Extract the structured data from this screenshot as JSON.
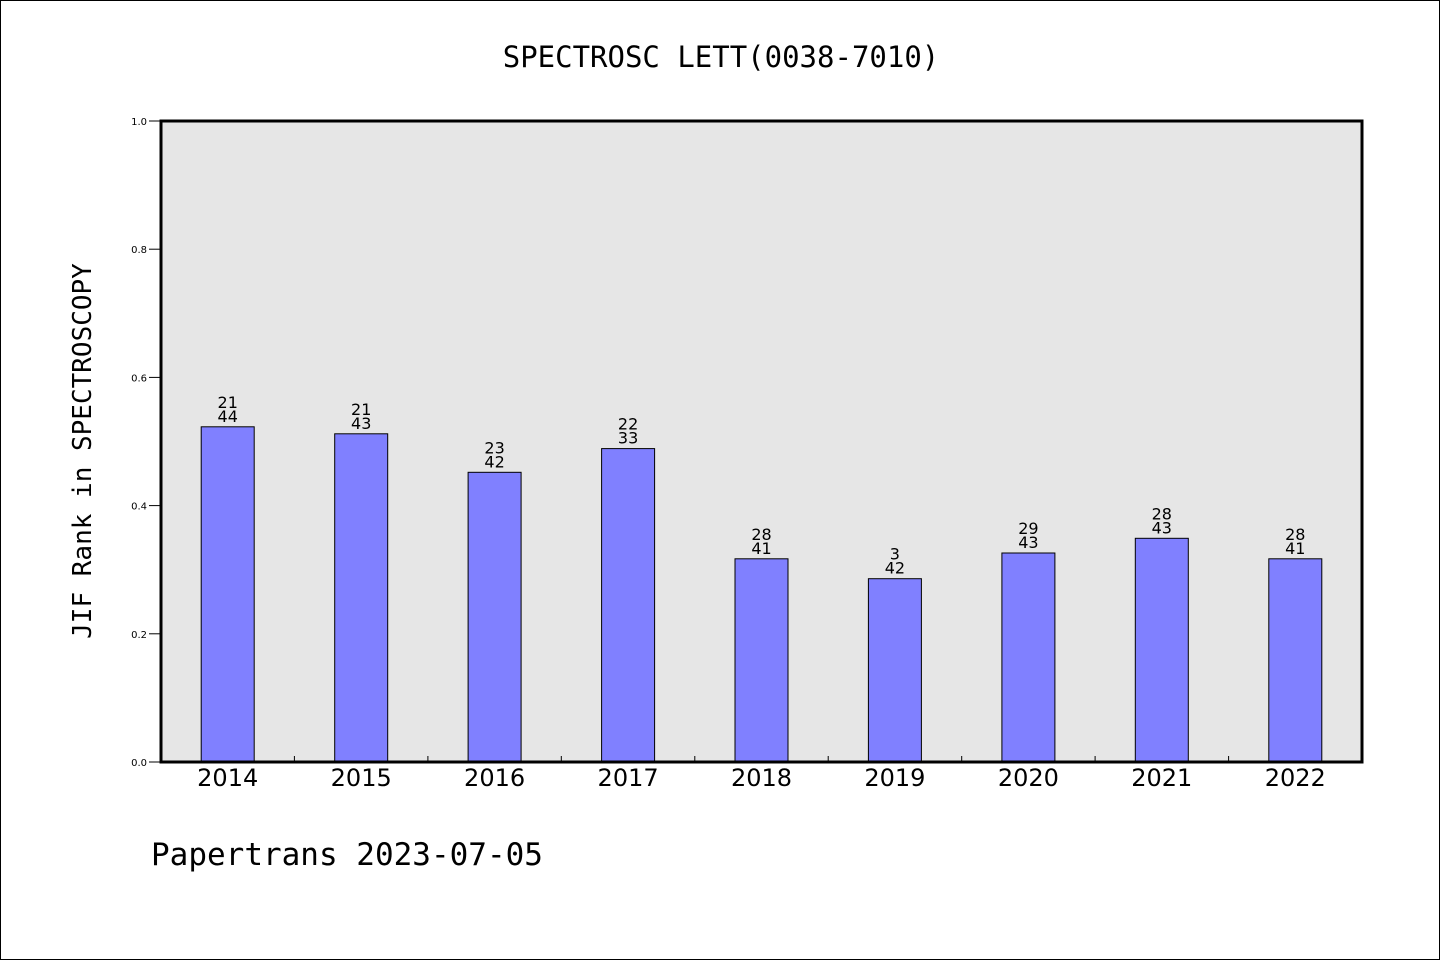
{
  "chart_data": {
    "type": "bar",
    "title": "SPECTROSC LETT(0038-7010)",
    "xlabel": "",
    "ylabel": "JIF Rank in SPECTROSCOPY",
    "categories": [
      "2014",
      "2015",
      "2016",
      "2017",
      "2018",
      "2019",
      "2020",
      "2021",
      "2022"
    ],
    "values": [
      0.523,
      0.512,
      0.452,
      0.489,
      0.317,
      0.286,
      0.326,
      0.349,
      0.317
    ],
    "ranks": [
      "21",
      "21",
      "23",
      "22",
      "28",
      "3",
      "29",
      "28",
      "28"
    ],
    "totals": [
      "44",
      "43",
      "42",
      "33",
      "41",
      "42",
      "43",
      "43",
      "41"
    ],
    "ylim": [
      0,
      1
    ],
    "yticks": [
      "0.0",
      "0.2",
      "0.4",
      "0.6",
      "0.8",
      "1.0"
    ],
    "ytick_values": [
      0,
      0.2,
      0.4,
      0.6,
      0.8,
      1.0
    ],
    "grid": false,
    "legend": "none"
  },
  "footer": {
    "text": "Papertrans 2023-07-05"
  },
  "colors": {
    "bar_fill": "#8080ff",
    "bar_stroke": "#000000",
    "plot_background": "#e6e6e6",
    "axes": "#000000"
  }
}
